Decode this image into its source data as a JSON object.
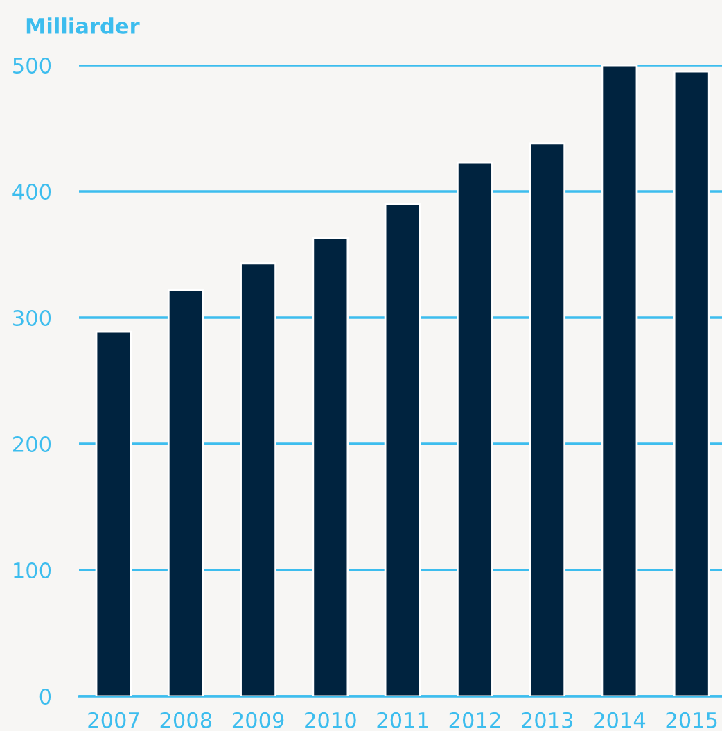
{
  "chart_data": {
    "type": "bar",
    "ylabel": "Milliarder",
    "categories": [
      "2007",
      "2008",
      "2009",
      "2010",
      "2011",
      "2012",
      "2013",
      "2014",
      "2015"
    ],
    "values": [
      289,
      322,
      343,
      363,
      390,
      423,
      438,
      500,
      495
    ],
    "color": "#00233f",
    "ylim": [
      0,
      500
    ],
    "yticks": [
      0,
      100,
      200,
      300,
      400,
      500
    ],
    "grid": "y",
    "legend": false
  }
}
